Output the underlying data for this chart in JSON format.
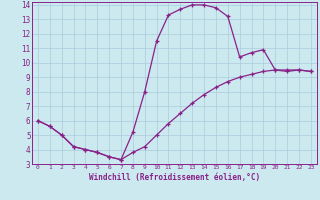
{
  "xlabel": "Windchill (Refroidissement éolien,°C)",
  "xlim": [
    -0.5,
    23.5
  ],
  "ylim": [
    3,
    14.2
  ],
  "xticks": [
    0,
    1,
    2,
    3,
    4,
    5,
    6,
    7,
    8,
    9,
    10,
    11,
    12,
    13,
    14,
    15,
    16,
    17,
    18,
    19,
    20,
    21,
    22,
    23
  ],
  "yticks": [
    3,
    4,
    5,
    6,
    7,
    8,
    9,
    10,
    11,
    12,
    13,
    14
  ],
  "bg_color": "#cce9f0",
  "grid_color": "#aaccdd",
  "line_color": "#882288",
  "curve1_x": [
    0,
    1,
    2,
    3,
    4,
    5,
    6,
    7,
    8,
    9,
    10,
    11,
    12,
    13,
    14,
    15,
    16,
    17,
    18,
    19,
    20,
    21,
    22,
    23
  ],
  "curve1_y": [
    6.0,
    5.6,
    5.0,
    4.2,
    4.0,
    3.8,
    3.5,
    3.3,
    5.2,
    8.0,
    11.5,
    13.3,
    13.7,
    14.0,
    14.0,
    13.8,
    13.2,
    10.4,
    10.7,
    10.9,
    9.5,
    9.4,
    9.5,
    9.4
  ],
  "curve2_x": [
    0,
    1,
    2,
    3,
    4,
    5,
    6,
    7,
    8,
    9,
    10,
    11,
    12,
    13,
    14,
    15,
    16,
    17,
    18,
    19,
    20,
    21,
    22,
    23
  ],
  "curve2_y": [
    6.0,
    5.6,
    5.0,
    4.2,
    4.0,
    3.8,
    3.5,
    3.3,
    3.8,
    4.2,
    5.0,
    5.8,
    6.5,
    7.2,
    7.8,
    8.3,
    8.7,
    9.0,
    9.2,
    9.4,
    9.5,
    9.5,
    9.5,
    9.4
  ]
}
